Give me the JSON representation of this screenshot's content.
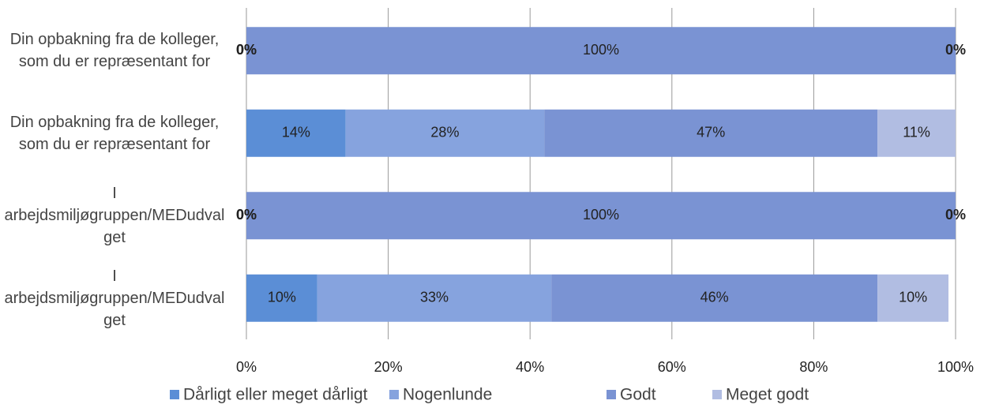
{
  "chart_data": {
    "type": "stacked_barh",
    "categories": [
      "Din opbakning fra de kolleger, som du er repræsentant for",
      "Din opbakning fra de kolleger, som du er repræsentant for",
      "I arbejdsmiljøgruppen/MEDudvalget",
      "I arbejdsmiljøgruppen/MEDudvalget"
    ],
    "series": [
      {
        "name": "Dårligt eller meget dårligt",
        "color": "#5b8ed6",
        "values": [
          0,
          14,
          0,
          10
        ],
        "value_labels": [
          "0%",
          "14%",
          "0%",
          "10%"
        ]
      },
      {
        "name": "Nogenlunde",
        "color": "#86a3de",
        "values": [
          0,
          28,
          0,
          33
        ],
        "value_labels": [
          "0%",
          "28%",
          "0%",
          "33%"
        ]
      },
      {
        "name": "Godt",
        "color": "#7a93d3",
        "values": [
          100,
          47,
          100,
          46
        ],
        "value_labels": [
          "100%",
          "47%",
          "100%",
          "46%"
        ]
      },
      {
        "name": "Meget godt",
        "color": "#b1bde2",
        "values": [
          0,
          11,
          0,
          10
        ],
        "value_labels": [
          "0%",
          "11%",
          "0%",
          "10%"
        ]
      }
    ],
    "xlim": [
      0,
      100
    ],
    "xticks": [
      {
        "value": 0,
        "label": "0%"
      },
      {
        "value": 20,
        "label": "20%"
      },
      {
        "value": 40,
        "label": "40%"
      },
      {
        "value": 60,
        "label": "60%"
      },
      {
        "value": 80,
        "label": "80%"
      },
      {
        "value": 100,
        "label": "100%"
      }
    ],
    "grid": true,
    "legend": "bottom"
  }
}
